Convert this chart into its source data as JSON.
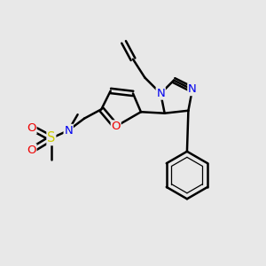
{
  "bg_color": "#e8e8e8",
  "line_color": "#000000",
  "bond_width": 1.8,
  "atom_colors": {
    "N": "#0000ee",
    "O": "#ee0000",
    "S": "#cccc00",
    "C": "#000000"
  },
  "font_size": 9.5,
  "fig_width": 3.0,
  "fig_height": 3.0,
  "dpi": 100
}
